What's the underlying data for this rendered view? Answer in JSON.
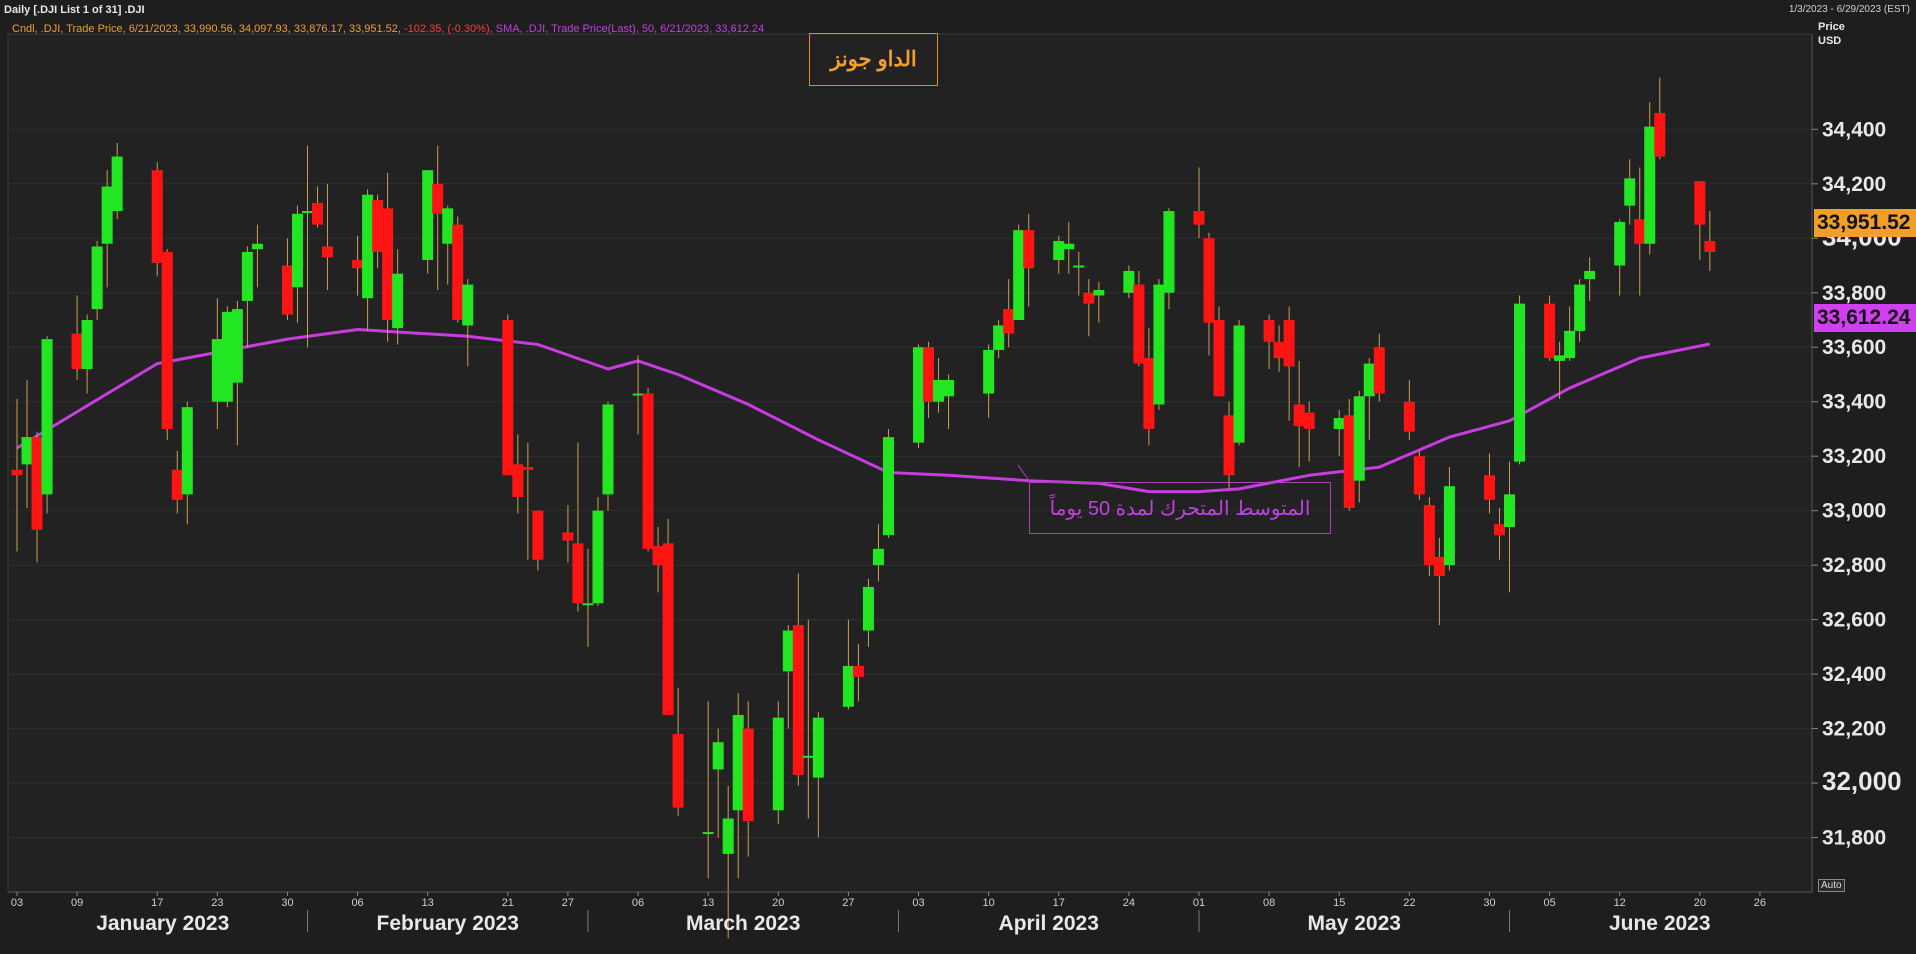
{
  "header": {
    "title": "Daily [.DJI List 1 of 31] .DJI",
    "date_range": "1/3/2023 - 6/29/2023 (EST)",
    "legend_prefix": "Cndl, .DJI, Trade Price, 6/21/2023, 33,990.56, 34,097.93, 33,876.17, 33,951.52,",
    "legend_change": " -102.35, (-0.30%),",
    "legend_sma": " SMA, .DJI, Trade Price(Last), 50, 6/21/2023, 33,612.24"
  },
  "axis": {
    "price_label": "Price",
    "currency": "USD",
    "auto_label": "Auto"
  },
  "annotations": {
    "index_name": "الداو جونز",
    "sma_label": "المتوسط المتحرك لمدة 50 يوماً"
  },
  "tags": {
    "last_price": "33,951.52",
    "sma_value": "33,612.24"
  },
  "colors": {
    "up": "#22e622",
    "down": "#ff1414",
    "sma": "#c83ce0",
    "last_tag": "#f0a028",
    "background": "#1e1e1e"
  },
  "chart_data": {
    "type": "candlestick",
    "title": "",
    "ylabel": "Price USD",
    "ylim": [
      31600,
      34750
    ],
    "y_ticks": [
      "31,800",
      "32,000",
      "32,200",
      "32,400",
      "32,600",
      "32,800",
      "33,000",
      "33,200",
      "33,400",
      "33,600",
      "33,800",
      "34,000",
      "34,200",
      "34,400"
    ],
    "x_ticks": [
      "03",
      "09",
      "17",
      "23",
      "30",
      "06",
      "13",
      "21",
      "27",
      "06",
      "13",
      "20",
      "27",
      "03",
      "10",
      "17",
      "24",
      "01",
      "08",
      "15",
      "22",
      "30",
      "05",
      "12",
      "20",
      "26"
    ],
    "months": [
      "January 2023",
      "February 2023",
      "March 2023",
      "April 2023",
      "May 2023",
      "June 2023"
    ],
    "candles": [
      {
        "d": "2023-01-03",
        "o": 33150,
        "h": 33410,
        "l": 32850,
        "c": 33130
      },
      {
        "d": "2023-01-04",
        "o": 33170,
        "h": 33480,
        "l": 33010,
        "c": 33270
      },
      {
        "d": "2023-01-05",
        "o": 33270,
        "h": 33290,
        "l": 32810,
        "c": 32930
      },
      {
        "d": "2023-01-06",
        "o": 33060,
        "h": 33640,
        "l": 32990,
        "c": 33630
      },
      {
        "d": "2023-01-09",
        "o": 33650,
        "h": 33790,
        "l": 33480,
        "c": 33520
      },
      {
        "d": "2023-01-10",
        "o": 33520,
        "h": 33720,
        "l": 33430,
        "c": 33700
      },
      {
        "d": "2023-01-11",
        "o": 33740,
        "h": 33990,
        "l": 33700,
        "c": 33970
      },
      {
        "d": "2023-01-12",
        "o": 33980,
        "h": 34250,
        "l": 33820,
        "c": 34190
      },
      {
        "d": "2023-01-13",
        "o": 34100,
        "h": 34350,
        "l": 34070,
        "c": 34300
      },
      {
        "d": "2023-01-17",
        "o": 34250,
        "h": 34280,
        "l": 33860,
        "c": 33910
      },
      {
        "d": "2023-01-18",
        "o": 33950,
        "h": 33960,
        "l": 33260,
        "c": 33300
      },
      {
        "d": "2023-01-19",
        "o": 33150,
        "h": 33220,
        "l": 32990,
        "c": 33040
      },
      {
        "d": "2023-01-20",
        "o": 33060,
        "h": 33400,
        "l": 32950,
        "c": 33380
      },
      {
        "d": "2023-01-23",
        "o": 33400,
        "h": 33780,
        "l": 33300,
        "c": 33630
      },
      {
        "d": "2023-01-24",
        "o": 33400,
        "h": 33750,
        "l": 33380,
        "c": 33730
      },
      {
        "d": "2023-01-25",
        "o": 33470,
        "h": 33770,
        "l": 33240,
        "c": 33740
      },
      {
        "d": "2023-01-26",
        "o": 33770,
        "h": 33970,
        "l": 33600,
        "c": 33950
      },
      {
        "d": "2023-01-27",
        "o": 33960,
        "h": 34050,
        "l": 33820,
        "c": 33980
      },
      {
        "d": "2023-01-30",
        "o": 33900,
        "h": 34000,
        "l": 33700,
        "c": 33720
      },
      {
        "d": "2023-01-31",
        "o": 33820,
        "h": 34120,
        "l": 33690,
        "c": 34090
      },
      {
        "d": "2023-02-01",
        "o": 34100,
        "h": 34340,
        "l": 33600,
        "c": 34100
      },
      {
        "d": "2023-02-02",
        "o": 34130,
        "h": 34190,
        "l": 34040,
        "c": 34050
      },
      {
        "d": "2023-02-03",
        "o": 33970,
        "h": 34200,
        "l": 33810,
        "c": 33930
      },
      {
        "d": "2023-02-06",
        "o": 33920,
        "h": 34010,
        "l": 33790,
        "c": 33890
      },
      {
        "d": "2023-02-07",
        "o": 33780,
        "h": 34180,
        "l": 33660,
        "c": 34160
      },
      {
        "d": "2023-02-08",
        "o": 34140,
        "h": 34160,
        "l": 33890,
        "c": 33950
      },
      {
        "d": "2023-02-09",
        "o": 34110,
        "h": 34240,
        "l": 33620,
        "c": 33700
      },
      {
        "d": "2023-02-10",
        "o": 33670,
        "h": 33960,
        "l": 33610,
        "c": 33870
      },
      {
        "d": "2023-02-13",
        "o": 33920,
        "h": 34250,
        "l": 33870,
        "c": 34250
      },
      {
        "d": "2023-02-14",
        "o": 34200,
        "h": 34340,
        "l": 33810,
        "c": 34090
      },
      {
        "d": "2023-02-15",
        "o": 33980,
        "h": 34120,
        "l": 33830,
        "c": 34110
      },
      {
        "d": "2023-02-16",
        "o": 34050,
        "h": 34080,
        "l": 33690,
        "c": 33700
      },
      {
        "d": "2023-02-17",
        "o": 33680,
        "h": 33850,
        "l": 33530,
        "c": 33830
      },
      {
        "d": "2023-02-21",
        "o": 33700,
        "h": 33720,
        "l": 33130,
        "c": 33130
      },
      {
        "d": "2023-02-22",
        "o": 33170,
        "h": 33280,
        "l": 32990,
        "c": 33050
      },
      {
        "d": "2023-02-23",
        "o": 33160,
        "h": 33250,
        "l": 32820,
        "c": 33150
      },
      {
        "d": "2023-02-24",
        "o": 33000,
        "h": 33000,
        "l": 32780,
        "c": 32820
      },
      {
        "d": "2023-02-27",
        "o": 32920,
        "h": 33020,
        "l": 32810,
        "c": 32890
      },
      {
        "d": "2023-02-28",
        "o": 32880,
        "h": 33250,
        "l": 32630,
        "c": 32660
      },
      {
        "d": "2023-03-01",
        "o": 32660,
        "h": 32860,
        "l": 32500,
        "c": 32660
      },
      {
        "d": "2023-03-02",
        "o": 32660,
        "h": 33050,
        "l": 32650,
        "c": 33000
      },
      {
        "d": "2023-03-03",
        "o": 33060,
        "h": 33400,
        "l": 33000,
        "c": 33390
      },
      {
        "d": "2023-03-06",
        "o": 33430,
        "h": 33570,
        "l": 33280,
        "c": 33430
      },
      {
        "d": "2023-03-07",
        "o": 33430,
        "h": 33450,
        "l": 32850,
        "c": 32860
      },
      {
        "d": "2023-03-08",
        "o": 32870,
        "h": 32940,
        "l": 32700,
        "c": 32800
      },
      {
        "d": "2023-03-09",
        "o": 32880,
        "h": 32970,
        "l": 32250,
        "c": 32250
      },
      {
        "d": "2023-03-10",
        "o": 32180,
        "h": 32350,
        "l": 31880,
        "c": 31910
      },
      {
        "d": "2023-03-13",
        "o": 31820,
        "h": 32300,
        "l": 31650,
        "c": 31820
      },
      {
        "d": "2023-03-14",
        "o": 32050,
        "h": 32200,
        "l": 31800,
        "c": 32150
      },
      {
        "d": "2023-03-15",
        "o": 31740,
        "h": 31990,
        "l": 31430,
        "c": 31870
      },
      {
        "d": "2023-03-16",
        "o": 31900,
        "h": 32330,
        "l": 31650,
        "c": 32250
      },
      {
        "d": "2023-03-17",
        "o": 32200,
        "h": 32300,
        "l": 31730,
        "c": 31860
      },
      {
        "d": "2023-03-20",
        "o": 31900,
        "h": 32300,
        "l": 31850,
        "c": 32240
      },
      {
        "d": "2023-03-21",
        "o": 32410,
        "h": 32580,
        "l": 32200,
        "c": 32560
      },
      {
        "d": "2023-03-22",
        "o": 32580,
        "h": 32770,
        "l": 31990,
        "c": 32030
      },
      {
        "d": "2023-03-23",
        "o": 32100,
        "h": 32600,
        "l": 31870,
        "c": 32100
      },
      {
        "d": "2023-03-24",
        "o": 32020,
        "h": 32260,
        "l": 31800,
        "c": 32240
      },
      {
        "d": "2023-03-27",
        "o": 32280,
        "h": 32600,
        "l": 32270,
        "c": 32430
      },
      {
        "d": "2023-03-28",
        "o": 32430,
        "h": 32510,
        "l": 32300,
        "c": 32390
      },
      {
        "d": "2023-03-29",
        "o": 32560,
        "h": 32750,
        "l": 32500,
        "c": 32720
      },
      {
        "d": "2023-03-30",
        "o": 32800,
        "h": 32950,
        "l": 32740,
        "c": 32860
      },
      {
        "d": "2023-03-31",
        "o": 32910,
        "h": 33300,
        "l": 32900,
        "c": 33270
      },
      {
        "d": "2023-04-03",
        "o": 33250,
        "h": 33610,
        "l": 33230,
        "c": 33600
      },
      {
        "d": "2023-04-04",
        "o": 33600,
        "h": 33620,
        "l": 33340,
        "c": 33400
      },
      {
        "d": "2023-04-05",
        "o": 33400,
        "h": 33560,
        "l": 33360,
        "c": 33480
      },
      {
        "d": "2023-04-06",
        "o": 33420,
        "h": 33500,
        "l": 33300,
        "c": 33480
      },
      {
        "d": "2023-04-10",
        "o": 33430,
        "h": 33610,
        "l": 33340,
        "c": 33590
      },
      {
        "d": "2023-04-11",
        "o": 33590,
        "h": 33700,
        "l": 33560,
        "c": 33680
      },
      {
        "d": "2023-04-12",
        "o": 33740,
        "h": 33850,
        "l": 33600,
        "c": 33650
      },
      {
        "d": "2023-04-13",
        "o": 33700,
        "h": 34050,
        "l": 33700,
        "c": 34030
      },
      {
        "d": "2023-04-14",
        "o": 34030,
        "h": 34090,
        "l": 33750,
        "c": 33890
      },
      {
        "d": "2023-04-17",
        "o": 33920,
        "h": 34010,
        "l": 33870,
        "c": 33990
      },
      {
        "d": "2023-04-18",
        "o": 33960,
        "h": 34060,
        "l": 33870,
        "c": 33980
      },
      {
        "d": "2023-04-19",
        "o": 33900,
        "h": 33950,
        "l": 33790,
        "c": 33900
      },
      {
        "d": "2023-04-20",
        "o": 33800,
        "h": 33850,
        "l": 33640,
        "c": 33760
      },
      {
        "d": "2023-04-21",
        "o": 33790,
        "h": 33840,
        "l": 33690,
        "c": 33810
      },
      {
        "d": "2023-04-24",
        "o": 33800,
        "h": 33900,
        "l": 33780,
        "c": 33880
      },
      {
        "d": "2023-04-25",
        "o": 33830,
        "h": 33880,
        "l": 33530,
        "c": 33540
      },
      {
        "d": "2023-04-26",
        "o": 33560,
        "h": 33670,
        "l": 33240,
        "c": 33300
      },
      {
        "d": "2023-04-27",
        "o": 33390,
        "h": 33850,
        "l": 33370,
        "c": 33830
      },
      {
        "d": "2023-04-28",
        "o": 33800,
        "h": 34110,
        "l": 33740,
        "c": 34100
      },
      {
        "d": "2023-05-01",
        "o": 34100,
        "h": 34260,
        "l": 34000,
        "c": 34050
      },
      {
        "d": "2023-05-02",
        "o": 34000,
        "h": 34020,
        "l": 33570,
        "c": 33690
      },
      {
        "d": "2023-05-03",
        "o": 33700,
        "h": 33750,
        "l": 33420,
        "c": 33420
      },
      {
        "d": "2023-05-04",
        "o": 33350,
        "h": 33400,
        "l": 33080,
        "c": 33130
      },
      {
        "d": "2023-05-05",
        "o": 33250,
        "h": 33700,
        "l": 33240,
        "c": 33680
      },
      {
        "d": "2023-05-08",
        "o": 33700,
        "h": 33720,
        "l": 33520,
        "c": 33620
      },
      {
        "d": "2023-05-09",
        "o": 33620,
        "h": 33680,
        "l": 33510,
        "c": 33560
      },
      {
        "d": "2023-05-10",
        "o": 33700,
        "h": 33750,
        "l": 33330,
        "c": 33530
      },
      {
        "d": "2023-05-11",
        "o": 33390,
        "h": 33550,
        "l": 33160,
        "c": 33310
      },
      {
        "d": "2023-05-12",
        "o": 33360,
        "h": 33400,
        "l": 33180,
        "c": 33300
      },
      {
        "d": "2023-05-15",
        "o": 33300,
        "h": 33370,
        "l": 33200,
        "c": 33340
      },
      {
        "d": "2023-05-16",
        "o": 33350,
        "h": 33410,
        "l": 33000,
        "c": 33010
      },
      {
        "d": "2023-05-17",
        "o": 33110,
        "h": 33440,
        "l": 33030,
        "c": 33420
      },
      {
        "d": "2023-05-18",
        "o": 33420,
        "h": 33560,
        "l": 33260,
        "c": 33540
      },
      {
        "d": "2023-05-19",
        "o": 33600,
        "h": 33650,
        "l": 33400,
        "c": 33430
      },
      {
        "d": "2023-05-22",
        "o": 33400,
        "h": 33480,
        "l": 33260,
        "c": 33290
      },
      {
        "d": "2023-05-23",
        "o": 33200,
        "h": 33220,
        "l": 33040,
        "c": 33060
      },
      {
        "d": "2023-05-24",
        "o": 33020,
        "h": 33050,
        "l": 32760,
        "c": 32800
      },
      {
        "d": "2023-05-25",
        "o": 32830,
        "h": 32900,
        "l": 32580,
        "c": 32760
      },
      {
        "d": "2023-05-26",
        "o": 32800,
        "h": 33160,
        "l": 32780,
        "c": 33090
      },
      {
        "d": "2023-05-30",
        "o": 33130,
        "h": 33210,
        "l": 32990,
        "c": 33040
      },
      {
        "d": "2023-05-31",
        "o": 32950,
        "h": 33010,
        "l": 32820,
        "c": 32910
      },
      {
        "d": "2023-06-01",
        "o": 32940,
        "h": 33180,
        "l": 32700,
        "c": 33060
      },
      {
        "d": "2023-06-02",
        "o": 33180,
        "h": 33790,
        "l": 33170,
        "c": 33760
      },
      {
        "d": "2023-06-05",
        "o": 33760,
        "h": 33790,
        "l": 33550,
        "c": 33560
      },
      {
        "d": "2023-06-06",
        "o": 33550,
        "h": 33620,
        "l": 33410,
        "c": 33570
      },
      {
        "d": "2023-06-07",
        "o": 33560,
        "h": 33750,
        "l": 33550,
        "c": 33660
      },
      {
        "d": "2023-06-08",
        "o": 33660,
        "h": 33850,
        "l": 33620,
        "c": 33830
      },
      {
        "d": "2023-06-09",
        "o": 33850,
        "h": 33930,
        "l": 33770,
        "c": 33880
      },
      {
        "d": "2023-06-12",
        "o": 33900,
        "h": 34070,
        "l": 33790,
        "c": 34060
      },
      {
        "d": "2023-06-13",
        "o": 34120,
        "h": 34290,
        "l": 34050,
        "c": 34220
      },
      {
        "d": "2023-06-14",
        "o": 34070,
        "h": 34260,
        "l": 33790,
        "c": 33980
      },
      {
        "d": "2023-06-15",
        "o": 33980,
        "h": 34500,
        "l": 33940,
        "c": 34410
      },
      {
        "d": "2023-06-16",
        "o": 34460,
        "h": 34590,
        "l": 34290,
        "c": 34300
      },
      {
        "d": "2023-06-20",
        "o": 34210,
        "h": 34200,
        "l": 33920,
        "c": 34050
      },
      {
        "d": "2023-06-21",
        "o": 33990,
        "h": 34100,
        "l": 33880,
        "c": 33950
      }
    ],
    "sma": [
      {
        "d": "2023-01-03",
        "v": 33230
      },
      {
        "d": "2023-01-17",
        "v": 33540
      },
      {
        "d": "2023-01-30",
        "v": 33630
      },
      {
        "d": "2023-02-06",
        "v": 33665
      },
      {
        "d": "2023-02-17",
        "v": 33640
      },
      {
        "d": "2023-02-24",
        "v": 33610
      },
      {
        "d": "2023-03-03",
        "v": 33520
      },
      {
        "d": "2023-03-06",
        "v": 33550
      },
      {
        "d": "2023-03-10",
        "v": 33500
      },
      {
        "d": "2023-03-17",
        "v": 33390
      },
      {
        "d": "2023-03-24",
        "v": 33260
      },
      {
        "d": "2023-03-31",
        "v": 33140
      },
      {
        "d": "2023-04-06",
        "v": 33130
      },
      {
        "d": "2023-04-14",
        "v": 33110
      },
      {
        "d": "2023-04-21",
        "v": 33100
      },
      {
        "d": "2023-04-26",
        "v": 33070
      },
      {
        "d": "2023-05-01",
        "v": 33070
      },
      {
        "d": "2023-05-05",
        "v": 33080
      },
      {
        "d": "2023-05-12",
        "v": 33130
      },
      {
        "d": "2023-05-19",
        "v": 33160
      },
      {
        "d": "2023-05-26",
        "v": 33270
      },
      {
        "d": "2023-06-01",
        "v": 33330
      },
      {
        "d": "2023-06-07",
        "v": 33450
      },
      {
        "d": "2023-06-14",
        "v": 33560
      },
      {
        "d": "2023-06-21",
        "v": 33612
      }
    ]
  }
}
